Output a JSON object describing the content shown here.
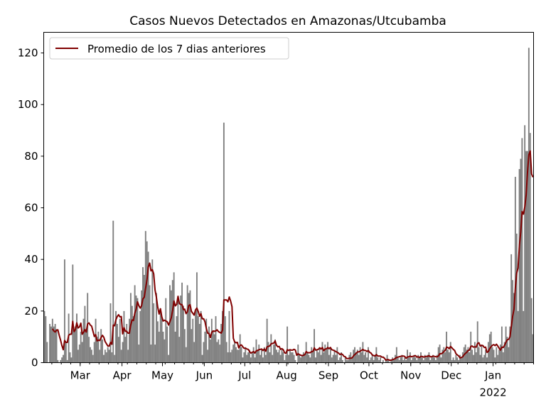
{
  "chart_data": {
    "type": "bar",
    "title": "Casos Nuevos Detectados en Amazonas/Utcubamba",
    "xlabel": "",
    "ylabel": "",
    "start_date": "2021-02-02",
    "ylim": [
      0,
      128
    ],
    "yticks": [
      0,
      20,
      40,
      60,
      80,
      100,
      120
    ],
    "xticks": [
      {
        "label": "Mar",
        "date": "2021-03-01"
      },
      {
        "label": "Apr",
        "date": "2021-04-01"
      },
      {
        "label": "May",
        "date": "2021-05-01"
      },
      {
        "label": "Jun",
        "date": "2021-06-01"
      },
      {
        "label": "Jul",
        "date": "2021-07-01"
      },
      {
        "label": "Aug",
        "date": "2021-08-01"
      },
      {
        "label": "Sep",
        "date": "2021-09-01"
      },
      {
        "label": "Oct",
        "date": "2021-10-01"
      },
      {
        "label": "Nov",
        "date": "2021-11-01"
      },
      {
        "label": "Dec",
        "date": "2021-12-01"
      },
      {
        "label": "Jan",
        "date": "2022-01-01",
        "sublabel": "2022"
      }
    ],
    "bar_color": "#808080",
    "line_color": "#800000",
    "legend": {
      "position": "top-left",
      "entries": [
        "Promedio de los 7 dias anteriores"
      ]
    },
    "moving_average_window": 7,
    "values": [
      20,
      18,
      8,
      0,
      15,
      14,
      17,
      14,
      15,
      13,
      1,
      0,
      1,
      2,
      3,
      40,
      8,
      1,
      19,
      4,
      2,
      38,
      12,
      14,
      19,
      5,
      7,
      12,
      8,
      17,
      22,
      12,
      27,
      10,
      6,
      5,
      3,
      8,
      17,
      10,
      12,
      5,
      13,
      9,
      3,
      5,
      4,
      6,
      5,
      23,
      4,
      55,
      3,
      20,
      15,
      10,
      17,
      5,
      8,
      20,
      10,
      15,
      5,
      17,
      27,
      22,
      18,
      30,
      26,
      25,
      7,
      20,
      28,
      37,
      34,
      51,
      47,
      43,
      30,
      7,
      40,
      23,
      7,
      27,
      16,
      12,
      21,
      18,
      12,
      9,
      25,
      14,
      3,
      30,
      28,
      32,
      35,
      12,
      18,
      25,
      10,
      26,
      31,
      22,
      13,
      6,
      30,
      27,
      28,
      13,
      17,
      8,
      20,
      35,
      18,
      15,
      20,
      3,
      8,
      12,
      17,
      5,
      14,
      9,
      17,
      12,
      11,
      18,
      8,
      9,
      7,
      15,
      20,
      93,
      18,
      8,
      4,
      20,
      4,
      5,
      7,
      8,
      6,
      5,
      5,
      11,
      6,
      2,
      4,
      6,
      3,
      4,
      5,
      2,
      4,
      6,
      2,
      9,
      5,
      7,
      3,
      5,
      2,
      6,
      3,
      17,
      8,
      4,
      11,
      3,
      7,
      9,
      5,
      4,
      5,
      3,
      5,
      4,
      1,
      3,
      14,
      3,
      5,
      4,
      4,
      3,
      1,
      0,
      7,
      3,
      2,
      3,
      4,
      3,
      8,
      4,
      3,
      2,
      6,
      4,
      13,
      2,
      5,
      4,
      6,
      3,
      8,
      4,
      7,
      5,
      8,
      3,
      6,
      2,
      3,
      5,
      3,
      6,
      1,
      2,
      4,
      1,
      0,
      2,
      1,
      1,
      3,
      4,
      2,
      5,
      6,
      4,
      5,
      3,
      6,
      4,
      8,
      3,
      4,
      2,
      6,
      1,
      2,
      3,
      1,
      3,
      6,
      2,
      1,
      2,
      0,
      1,
      0,
      1,
      3,
      1,
      0,
      1,
      2,
      1,
      3,
      6,
      2,
      1,
      2,
      3,
      1,
      2,
      1,
      5,
      2,
      4,
      1,
      2,
      3,
      2,
      1,
      3,
      2,
      4,
      2,
      1,
      3,
      2,
      3,
      4,
      1,
      2,
      3,
      2,
      1,
      3,
      6,
      7,
      2,
      5,
      6,
      4,
      12,
      5,
      4,
      8,
      1,
      2,
      1,
      3,
      2,
      1,
      3,
      2,
      4,
      6,
      7,
      5,
      6,
      4,
      12,
      5,
      3,
      8,
      4,
      16,
      6,
      3,
      7,
      2,
      3,
      5,
      2,
      8,
      11,
      12,
      6,
      5,
      2,
      6,
      3,
      5,
      7,
      14,
      4,
      8,
      14,
      10,
      6,
      14,
      42,
      32,
      27,
      72,
      50,
      20,
      75,
      79,
      87,
      20,
      92,
      82,
      82,
      122,
      89,
      25,
      11
    ]
  }
}
